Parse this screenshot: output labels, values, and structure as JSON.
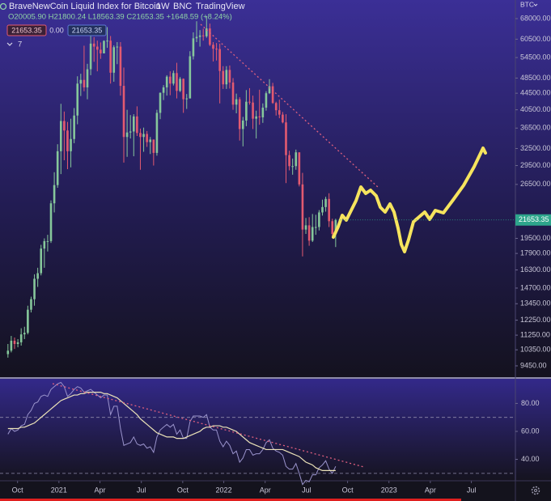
{
  "header": {
    "title": "BraveNewCoin Liquid Index for Bitcoin",
    "interval": "1W",
    "exchange": "BNC",
    "source": "TradingView",
    "ohlc": "O20005.90 H21800.24 L18563.39 C21653.35 +1648.59 (+8.24%)",
    "sell_price": "21653.35",
    "spread": "0.00",
    "buy_price": "21653.35",
    "indicator_count": "7"
  },
  "chart_data": [
    {
      "type": "candlestick",
      "currency": "BTC",
      "log_scale": true,
      "up_color": "#86c79b",
      "down_color": "#e35a70",
      "last_price_label": "21653.35",
      "last_price_color": "#2ea58c",
      "xlim": [
        -2.4,
        153.3
      ],
      "ylim": [
        8860,
        75590
      ],
      "yticks": [
        {
          "value": 68000,
          "label": "68000.00"
        },
        {
          "value": 60500,
          "label": "60500.00"
        },
        {
          "value": 54500,
          "label": "54500.00"
        },
        {
          "value": 48500,
          "label": "48500.00"
        },
        {
          "value": 44500,
          "label": "44500.00"
        },
        {
          "value": 40500,
          "label": "40500.00"
        },
        {
          "value": 36500,
          "label": "36500.00"
        },
        {
          "value": 32500,
          "label": "32500.00"
        },
        {
          "value": 29500,
          "label": "29500.00"
        },
        {
          "value": 26500,
          "label": "26500.00"
        },
        {
          "value": 19500,
          "label": "19500.00"
        },
        {
          "value": 17900,
          "label": "17900.00"
        },
        {
          "value": 16300,
          "label": "16300.00"
        },
        {
          "value": 14700,
          "label": "14700.00"
        },
        {
          "value": 13450,
          "label": "13450.00"
        },
        {
          "value": 12250,
          "label": "12250.00"
        },
        {
          "value": 11250,
          "label": "11250.00"
        },
        {
          "value": 10350,
          "label": "10350.00"
        },
        {
          "value": 9450,
          "label": "9450.00"
        }
      ],
      "open": [
        10100,
        10300,
        10900,
        10700,
        10800,
        11300,
        11400,
        13000,
        13800,
        15500,
        16000,
        18400,
        19200,
        19200,
        23800,
        26400,
        32000,
        38000,
        36000,
        32000,
        34300,
        39200,
        47000,
        48000,
        46000,
        51000,
        59000,
        58000,
        57000,
        55800,
        59900,
        60000,
        50000,
        57800,
        58000,
        46400,
        34700,
        35600,
        35800,
        39000,
        35500,
        34700,
        35300,
        33700,
        34200,
        31700,
        39800,
        44600,
        46000,
        48900,
        47000,
        49900,
        45100,
        48300,
        43000,
        43200,
        54900,
        60800,
        61300,
        61800,
        61500,
        64300,
        58600,
        57300,
        57200,
        50500,
        46800,
        50800,
        47300,
        41700,
        43000,
        36300,
        38100,
        42400,
        42200,
        38500,
        39000,
        38800,
        41000,
        44500,
        46300,
        42100,
        40400,
        39400,
        37700,
        31300,
        29400,
        29400,
        31800,
        26500,
        20500,
        21000,
        19250,
        20800,
        20800,
        22600,
        23300,
        24400,
        21500,
        20005.9
      ],
      "high": [
        10700,
        11200,
        11100,
        11000,
        11700,
        11800,
        13300,
        14000,
        15900,
        16500,
        18800,
        19500,
        19900,
        24200,
        28400,
        33300,
        41900,
        40100,
        37800,
        38500,
        40900,
        49000,
        49700,
        58300,
        52600,
        61700,
        61200,
        60000,
        59400,
        60100,
        64800,
        61600,
        58400,
        59500,
        59500,
        51500,
        40500,
        39300,
        39500,
        41300,
        36400,
        36600,
        35900,
        34700,
        34200,
        40500,
        44700,
        46600,
        49300,
        50400,
        50600,
        52900,
        48800,
        48400,
        44300,
        56500,
        62900,
        67000,
        63700,
        64200,
        69000,
        66100,
        59500,
        59200,
        59000,
        51900,
        51900,
        52100,
        48500,
        44400,
        43500,
        38900,
        45300,
        45800,
        43900,
        40300,
        45400,
        42000,
        45000,
        48200,
        47200,
        42400,
        42900,
        40000,
        39500,
        32100,
        30700,
        32300,
        31800,
        28300,
        21900,
        22000,
        22400,
        22300,
        22900,
        24300,
        24700,
        25200,
        21800,
        21800.24
      ],
      "low": [
        9900,
        10200,
        10400,
        10500,
        10600,
        11000,
        11300,
        12800,
        13300,
        14800,
        15800,
        16500,
        18100,
        19000,
        22600,
        26000,
        28100,
        30400,
        28900,
        29200,
        33500,
        37300,
        43800,
        45000,
        43000,
        49300,
        53200,
        50400,
        54100,
        55800,
        57600,
        47000,
        47500,
        52500,
        43900,
        30000,
        31000,
        34400,
        31100,
        34900,
        28800,
        31900,
        32800,
        31500,
        29500,
        31200,
        38400,
        42800,
        43900,
        44000,
        46500,
        43200,
        44800,
        39800,
        40700,
        43200,
        53900,
        59500,
        58000,
        60000,
        61000,
        58200,
        53300,
        53600,
        42000,
        45600,
        45600,
        45700,
        40500,
        39700,
        34000,
        32900,
        36900,
        41700,
        36300,
        34400,
        37200,
        37600,
        40300,
        44300,
        41900,
        39200,
        38600,
        37500,
        26700,
        28700,
        28000,
        28800,
        26200,
        17600,
        20000,
        18700,
        19100,
        19900,
        20400,
        22200,
        22700,
        20800,
        19700,
        18563.39
      ],
      "close": [
        10300,
        10900,
        10700,
        10800,
        11300,
        11400,
        13000,
        13800,
        15500,
        16000,
        18400,
        19200,
        19200,
        23800,
        26400,
        32000,
        38000,
        36000,
        32000,
        34300,
        39200,
        47000,
        48000,
        46000,
        51000,
        59000,
        58000,
        57000,
        55800,
        59900,
        60000,
        50000,
        57800,
        58000,
        46400,
        34700,
        35600,
        35800,
        39000,
        35500,
        34700,
        35300,
        33700,
        34200,
        31700,
        39800,
        44600,
        46000,
        48900,
        47000,
        49900,
        45100,
        48300,
        43000,
        43200,
        54900,
        60800,
        61300,
        61800,
        61500,
        64300,
        58600,
        57300,
        57200,
        50500,
        46800,
        50800,
        47300,
        41700,
        43000,
        36300,
        38100,
        42400,
        42200,
        38500,
        39000,
        38800,
        41000,
        44500,
        46300,
        42100,
        40400,
        39400,
        37700,
        31300,
        29400,
        29400,
        31800,
        26500,
        20500,
        21000,
        19250,
        20800,
        20800,
        22600,
        23300,
        24400,
        21500,
        20000,
        21653.35
      ]
    },
    {
      "type": "line",
      "xlim": [
        -2.4,
        153.3
      ],
      "ylim": [
        24.7,
        97.6
      ],
      "yticks": [
        {
          "value": 80,
          "label": "80.00"
        },
        {
          "value": 60,
          "label": "60.00"
        },
        {
          "value": 40,
          "label": "40.00"
        }
      ],
      "band_lines": [
        70,
        30
      ],
      "xticks": [
        {
          "value": 2.9,
          "label": "Oct"
        },
        {
          "value": 15.4,
          "label": "2021"
        },
        {
          "value": 27.8,
          "label": "Apr"
        },
        {
          "value": 40.3,
          "label": "Jul"
        },
        {
          "value": 52.8,
          "label": "Oct"
        },
        {
          "value": 65.2,
          "label": "2022"
        },
        {
          "value": 77.7,
          "label": "Apr"
        },
        {
          "value": 90.2,
          "label": "Jul"
        },
        {
          "value": 102.6,
          "label": "Oct"
        },
        {
          "value": 115.1,
          "label": "2023"
        },
        {
          "value": 127.6,
          "label": "Apr"
        },
        {
          "value": 140.0,
          "label": "Jul"
        }
      ],
      "series": [
        {
          "color": "#9a93cc",
          "values": [
            58,
            62,
            60,
            61,
            64,
            65,
            72,
            75,
            80,
            81,
            85,
            86,
            85,
            90,
            92,
            94,
            95,
            92,
            85,
            87,
            90,
            92,
            91,
            88,
            89,
            90,
            88,
            86,
            84,
            86,
            86,
            72,
            78,
            78,
            62,
            50,
            51,
            52,
            56,
            51,
            50,
            51,
            48,
            49,
            45,
            56,
            61,
            63,
            65,
            63,
            65,
            58,
            61,
            55,
            55,
            67,
            71,
            71,
            71,
            70,
            72,
            63,
            61,
            61,
            53,
            49,
            53,
            50,
            44,
            46,
            38,
            41,
            47,
            47,
            43,
            44,
            44,
            47,
            52,
            54,
            48,
            46,
            45,
            43,
            35,
            33,
            33,
            37,
            30,
            22,
            25,
            24,
            29,
            29,
            34,
            36,
            39,
            33,
            30,
            35
          ]
        },
        {
          "color": "#ece3b8",
          "values": [
            62,
            62,
            62,
            62,
            63,
            63,
            64,
            65,
            66,
            68,
            70,
            72,
            74,
            76,
            78,
            80,
            82,
            83,
            84,
            85,
            86,
            86,
            87,
            87,
            88,
            88,
            88,
            88,
            88,
            87,
            87,
            86,
            85,
            84,
            82,
            80,
            78,
            76,
            74,
            72,
            69,
            67,
            65,
            63,
            61,
            59,
            58,
            57,
            56,
            56,
            56,
            55,
            55,
            55,
            56,
            57,
            58,
            59,
            60,
            62,
            63,
            63,
            64,
            64,
            64,
            63,
            63,
            62,
            61,
            60,
            58,
            56,
            54,
            52,
            51,
            50,
            49,
            48,
            47,
            47,
            47,
            47,
            47,
            47,
            46,
            45,
            44,
            43,
            42,
            40,
            38,
            37,
            36,
            34,
            33,
            32,
            32,
            32,
            32,
            32
          ]
        }
      ]
    }
  ]
}
